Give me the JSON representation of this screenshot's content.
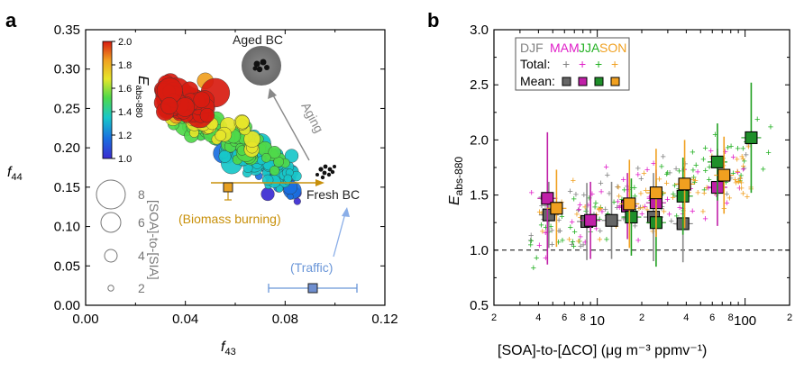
{
  "panels": {
    "a": {
      "letter": "a"
    },
    "b": {
      "letter": "b"
    }
  },
  "chart_data": [
    {
      "type": "scatter",
      "panel": "a",
      "xlabel": "f43",
      "ylabel": "f44",
      "xlim": [
        0.0,
        0.12
      ],
      "ylim": [
        0.0,
        0.35
      ],
      "x_ticks": [
        "0.00",
        "0.04",
        "0.08",
        "0.12"
      ],
      "y_ticks": [
        "0.00",
        "0.05",
        "0.10",
        "0.15",
        "0.20",
        "0.25",
        "0.30",
        "0.35"
      ],
      "colorbar": {
        "label": "Eabs-880",
        "min": 1.0,
        "max": 2.0,
        "ticks": [
          "1.0",
          "1.2",
          "1.4",
          "1.6",
          "1.8",
          "2.0"
        ],
        "colors": [
          "#3b2bd1",
          "#1a6fe0",
          "#18c7c9",
          "#4fd94a",
          "#e6e62a",
          "#f0a020",
          "#d81b10"
        ]
      },
      "size_legend": {
        "label": "[SOA]-to-[SIA]",
        "values": [
          "8",
          "6",
          "4",
          "2"
        ]
      },
      "annotations": {
        "aged_bc": "Aged BC",
        "fresh_bc": "Fresh BC",
        "aging": "Aging",
        "biomass": "(Biomass burning)",
        "traffic": "(Traffic)"
      },
      "reference_points": [
        {
          "name": "Aged BC",
          "x": 0.06,
          "y": 0.31
        },
        {
          "name": "Fresh BC",
          "x": 0.086,
          "y": 0.155
        },
        {
          "name": "Biomass burning",
          "x": 0.057,
          "y": 0.144,
          "yerr": 0.008
        },
        {
          "name": "Traffic",
          "x": 0.092,
          "y": 0.019,
          "xerr": 0.018
        }
      ],
      "cluster": {
        "x_range": [
          0.03,
          0.085
        ],
        "y_range": [
          0.13,
          0.3
        ],
        "trend": "f44 decreases as f43 increases; high Eabs (red) points at f43≈0.045-0.055, f44≈0.25-0.30"
      }
    },
    {
      "type": "scatter",
      "panel": "b",
      "xlabel": "[SOA]-to-[ΔCO] (μg m⁻³ ppmv⁻¹)",
      "ylabel": "Eabs-880",
      "x_scale": "log",
      "xlim": [
        2,
        200
      ],
      "ylim": [
        0.5,
        3.0
      ],
      "x_major_ticks": [
        "10",
        "100"
      ],
      "x_minor_labels": [
        "2",
        "4",
        "6",
        "8",
        "2",
        "4",
        "6",
        "8",
        "2"
      ],
      "y_ticks": [
        "0.5",
        "1.0",
        "1.5",
        "2.0",
        "2.5",
        "3.0"
      ],
      "reference_line": {
        "y": 1.0,
        "style": "dashed"
      },
      "legend": {
        "seasons": [
          "DJF",
          "MAM",
          "JJA",
          "SON"
        ],
        "row_total": "Total:",
        "row_mean": "Mean:",
        "plus": "+"
      },
      "series": [
        {
          "name": "DJF",
          "color": "#808080",
          "mean_points": [
            {
              "x": 4.7,
              "y": 1.32,
              "err": 0.3
            },
            {
              "x": 8.5,
              "y": 1.26,
              "err": 0.35
            },
            {
              "x": 12.5,
              "y": 1.27,
              "err": 0.35
            },
            {
              "x": 24,
              "y": 1.3,
              "err": 0.4
            },
            {
              "x": 38,
              "y": 1.24,
              "err": 0.35
            }
          ]
        },
        {
          "name": "MAM",
          "color": "#e01ec8",
          "mean_points": [
            {
              "x": 4.6,
              "y": 1.47,
              "err": 0.6
            },
            {
              "x": 9.0,
              "y": 1.27,
              "err": 0.35
            },
            {
              "x": 16,
              "y": 1.4,
              "err": 0.3
            },
            {
              "x": 25,
              "y": 1.43,
              "err": 0.3
            },
            {
              "x": 65,
              "y": 1.57,
              "err": 0.35
            }
          ]
        },
        {
          "name": "JJA",
          "color": "#22b022",
          "mean_points": [
            {
              "x": 17,
              "y": 1.3,
              "err": 0.35
            },
            {
              "x": 25,
              "y": 1.25,
              "err": 0.4
            },
            {
              "x": 38,
              "y": 1.49,
              "err": 0.35
            },
            {
              "x": 65,
              "y": 1.8,
              "err": 0.35
            },
            {
              "x": 110,
              "y": 2.02,
              "err": 0.5
            }
          ]
        },
        {
          "name": "SON",
          "color": "#f0a020",
          "mean_points": [
            {
              "x": 5.3,
              "y": 1.38,
              "err": 0.35
            },
            {
              "x": 16.5,
              "y": 1.42,
              "err": 0.4
            },
            {
              "x": 25,
              "y": 1.52,
              "err": 0.4
            },
            {
              "x": 39,
              "y": 1.6,
              "err": 0.4
            },
            {
              "x": 72,
              "y": 1.68,
              "err": 0.35
            }
          ]
        }
      ]
    }
  ]
}
